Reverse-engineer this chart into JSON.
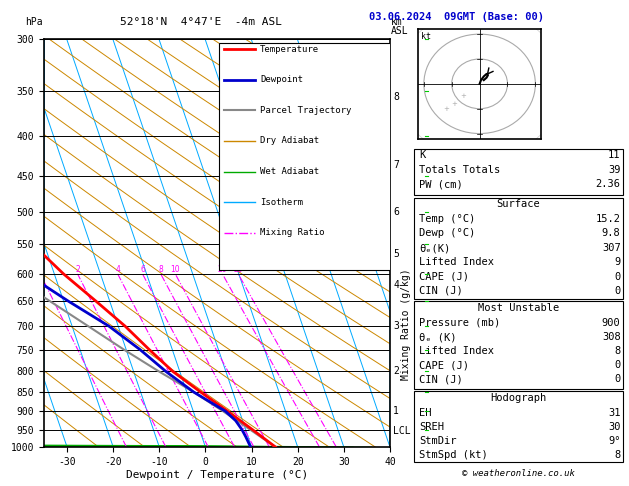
{
  "title_left": "52°18'N  4°47'E  -4m ASL",
  "title_right": "03.06.2024  09GMT (Base: 00)",
  "xlabel": "Dewpoint / Temperature (°C)",
  "pressure_levels": [
    300,
    350,
    400,
    450,
    500,
    550,
    600,
    650,
    700,
    750,
    800,
    850,
    900,
    950,
    1000
  ],
  "xmin": -35,
  "xmax": 40,
  "isotherm_color": "#00aaff",
  "dry_adiabat_color": "#cc8800",
  "wet_adiabat_color": "#00aa00",
  "mixing_ratio_color": "#ff00ff",
  "temp_color": "#ff0000",
  "dewp_color": "#0000cc",
  "parcel_color": "#888888",
  "legend_items": [
    {
      "label": "Temperature",
      "color": "#ff0000",
      "lw": 2,
      "ls": "-"
    },
    {
      "label": "Dewpoint",
      "color": "#0000cc",
      "lw": 2,
      "ls": "-"
    },
    {
      "label": "Parcel Trajectory",
      "color": "#888888",
      "lw": 1.5,
      "ls": "-"
    },
    {
      "label": "Dry Adiabat",
      "color": "#cc8800",
      "lw": 1,
      "ls": "-"
    },
    {
      "label": "Wet Adiabat",
      "color": "#00aa00",
      "lw": 1,
      "ls": "-"
    },
    {
      "label": "Isotherm",
      "color": "#00aaff",
      "lw": 1,
      "ls": "-"
    },
    {
      "label": "Mixing Ratio",
      "color": "#ff00ff",
      "lw": 1,
      "ls": "-."
    }
  ],
  "km_labels": [
    {
      "pressure": 356,
      "label": "8"
    },
    {
      "pressure": 435,
      "label": "7"
    },
    {
      "pressure": 500,
      "label": "6"
    },
    {
      "pressure": 565,
      "label": "5"
    },
    {
      "pressure": 620,
      "label": "4"
    },
    {
      "pressure": 700,
      "label": "3"
    },
    {
      "pressure": 800,
      "label": "2"
    },
    {
      "pressure": 900,
      "label": "1"
    },
    {
      "pressure": 953,
      "label": "LCL"
    }
  ],
  "surface_data": {
    "K": 11,
    "Totals Totals": 39,
    "PW (cm)": "2.36",
    "Surf_Temp": "15.2",
    "Surf_Dewp": "9.8",
    "Surf_theta_e": "307",
    "Surf_LI": "9",
    "Surf_CAPE": "0",
    "Surf_CIN": "0",
    "MU_Pressure": "900",
    "MU_theta_e": "308",
    "MU_LI": "8",
    "MU_CAPE": "0",
    "MU_CIN": "0",
    "Hodo_EH": "31",
    "Hodo_SREH": "30",
    "Hodo_StmDir": "9°",
    "Hodo_StmSpd": "8"
  },
  "temp_profile": {
    "pressure": [
      1000,
      970,
      950,
      925,
      900,
      850,
      800,
      750,
      700,
      650,
      600,
      550,
      500,
      450,
      400,
      350,
      300
    ],
    "temp": [
      15.2,
      13.0,
      11.5,
      9.5,
      7.5,
      3.0,
      -1.5,
      -5.0,
      -8.5,
      -13.0,
      -18.0,
      -22.5,
      -28.0,
      -34.0,
      -41.0,
      -49.0,
      -57.0
    ]
  },
  "dewp_profile": {
    "pressure": [
      1000,
      970,
      950,
      925,
      900,
      850,
      800,
      750,
      700,
      650,
      600,
      550,
      500,
      450,
      400,
      350,
      300
    ],
    "dewp": [
      9.8,
      9.5,
      9.2,
      8.5,
      7.0,
      1.5,
      -3.0,
      -7.0,
      -12.0,
      -19.0,
      -26.0,
      -35.0,
      -44.0,
      -51.0,
      -57.0,
      -62.0,
      -68.0
    ]
  },
  "parcel_profile": {
    "pressure": [
      1000,
      950,
      900,
      850,
      800,
      750,
      700,
      650,
      600,
      550,
      500,
      450,
      400,
      350,
      300
    ],
    "temp": [
      15.2,
      11.0,
      6.5,
      1.5,
      -4.5,
      -10.5,
      -16.5,
      -23.0,
      -30.0,
      -36.5,
      -43.5,
      -50.5,
      -57.5,
      -65.0,
      -72.0
    ]
  }
}
